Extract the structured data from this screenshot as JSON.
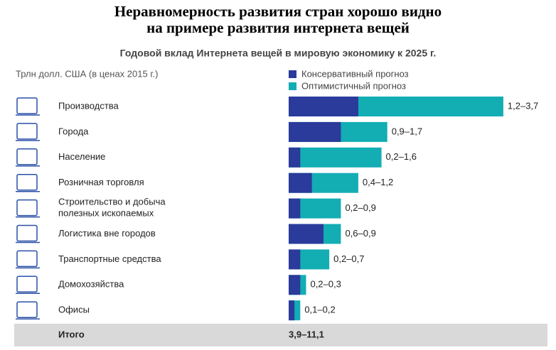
{
  "chart_data": {
    "type": "bar",
    "title": "Неравномерность развития стран хорошо видно на примере развития интернета вещей",
    "subtitle": "Годовой вклад Интернета вещей в мировую экономику к 2025 г.",
    "unit_note": "Трлн долл. США (в ценах 2015 г.)",
    "categories": [
      "Производства",
      "Города",
      "Население",
      "Розничная торговля",
      "Строительство и добыча\nполезных ископаемых",
      "Логистика вне городов",
      "Транспортные средства",
      "Домохозяйства",
      "Офисы"
    ],
    "series": [
      {
        "name": "Консервативный прогноз",
        "color": "#2a3b9b",
        "values": [
          1.2,
          0.9,
          0.2,
          0.4,
          0.2,
          0.6,
          0.2,
          0.2,
          0.1
        ]
      },
      {
        "name": "Оптимистичный прогноз",
        "color": "#13adb4",
        "values": [
          3.7,
          1.7,
          1.6,
          1.2,
          0.9,
          0.9,
          0.7,
          0.3,
          0.2
        ]
      }
    ],
    "value_labels": [
      "1,2–3,7",
      "0,9–1,7",
      "0,2–1,6",
      "0,4–1,2",
      "0,2–0,9",
      "0,6–0,9",
      "0,2–0,7",
      "0,2–0,3",
      "0,1–0,2"
    ],
    "total": {
      "label": "Итого",
      "value_label": "3,9–11,1"
    }
  }
}
